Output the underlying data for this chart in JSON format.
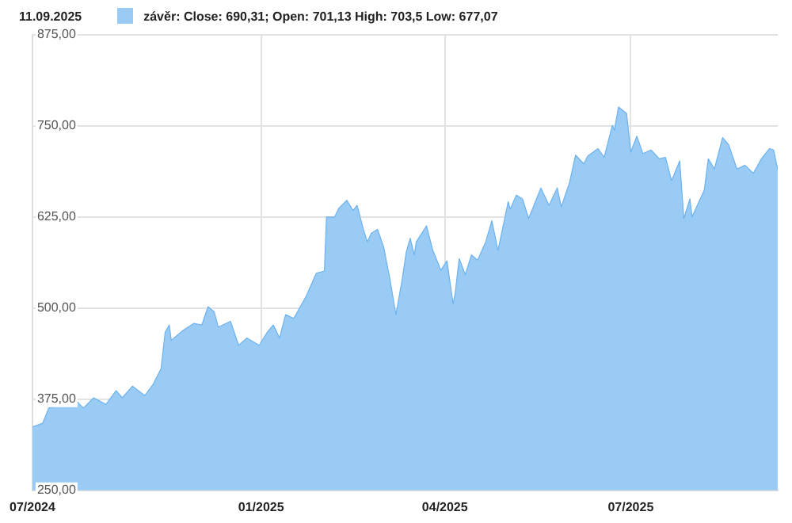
{
  "chart_data": {
    "type": "area",
    "title": "11.09.2025",
    "legend": "top left",
    "grid": true,
    "x": [
      "2024-09-11",
      "2024-09-16",
      "2024-09-19",
      "2024-09-22",
      "2024-10-02",
      "2024-10-06",
      "2024-10-11",
      "2024-10-17",
      "2024-10-22",
      "2024-10-25",
      "2024-10-30",
      "2024-11-05",
      "2024-11-09",
      "2024-11-13",
      "2024-11-15",
      "2024-11-17",
      "2024-11-18",
      "2024-11-24",
      "2024-11-29",
      "2024-12-03",
      "2024-12-06",
      "2024-12-09",
      "2024-12-11",
      "2024-12-17",
      "2024-12-21",
      "2024-12-25",
      "2024-12-31",
      "2025-01-04",
      "2025-01-07",
      "2025-01-10",
      "2025-01-13",
      "2025-01-17",
      "2025-01-23",
      "2025-01-28",
      "2025-02-01",
      "2025-02-02",
      "2025-02-06",
      "2025-02-08",
      "2025-02-12",
      "2025-02-15",
      "2025-02-17",
      "2025-02-20",
      "2025-02-22",
      "2025-02-24",
      "2025-02-27",
      "2025-03-02",
      "2025-03-05",
      "2025-03-08",
      "2025-03-11",
      "2025-03-13",
      "2025-03-15",
      "2025-03-17",
      "2025-03-18",
      "2025-03-23",
      "2025-03-26",
      "2025-03-30",
      "2025-04-02",
      "2025-04-05",
      "2025-04-06",
      "2025-04-08",
      "2025-04-11",
      "2025-04-14",
      "2025-04-17",
      "2025-04-21",
      "2025-04-24",
      "2025-04-27",
      "2025-05-02",
      "2025-05-03",
      "2025-05-06",
      "2025-05-09",
      "2025-05-12",
      "2025-05-18",
      "2025-05-22",
      "2025-05-26",
      "2025-05-28",
      "2025-06-01",
      "2025-06-04",
      "2025-06-08",
      "2025-06-10",
      "2025-06-15",
      "2025-06-18",
      "2025-06-22",
      "2025-06-23",
      "2025-06-25",
      "2025-06-29",
      "2025-07-01",
      "2025-07-04",
      "2025-07-07",
      "2025-07-11",
      "2025-07-15",
      "2025-07-18",
      "2025-07-21",
      "2025-07-25",
      "2025-07-27",
      "2025-07-30",
      "2025-07-31",
      "2025-08-06",
      "2025-08-08",
      "2025-08-11",
      "2025-08-15",
      "2025-08-18",
      "2025-08-22",
      "2025-08-26",
      "2025-08-30",
      "2025-09-03",
      "2025-09-07",
      "2025-09-09",
      "2025-09-11"
    ],
    "series": [
      {
        "name": "závěr: Close: 690,31; Open: 701,13 High: 703,5 Low: 677,07",
        "color": "#99cbf5",
        "values": [
          337,
          342,
          363,
          365,
          374,
          363,
          377,
          368,
          387,
          377,
          393,
          380,
          395,
          417,
          467,
          477,
          456,
          470,
          479,
          477,
          502,
          495,
          474,
          482,
          449,
          459,
          449,
          467,
          477,
          459,
          491,
          486,
          516,
          548,
          551,
          625,
          625,
          637,
          648,
          634,
          641,
          609,
          591,
          603,
          608,
          584,
          541,
          491,
          538,
          576,
          596,
          573,
          591,
          613,
          580,
          552,
          565,
          506,
          520,
          568,
          546,
          573,
          566,
          591,
          620,
          579,
          646,
          636,
          655,
          650,
          623,
          665,
          641,
          665,
          639,
          672,
          710,
          698,
          709,
          719,
          707,
          751,
          744,
          776,
          767,
          714,
          736,
          712,
          717,
          705,
          707,
          675,
          702,
          623,
          650,
          625,
          662,
          705,
          691,
          734,
          724,
          691,
          696,
          685,
          705,
          719,
          717,
          690
        ]
      }
    ],
    "xlim": [
      "2024-09-11",
      "2025-09-11"
    ],
    "xticks": [
      {
        "value": "2024-09-11",
        "label": "07/2024"
      },
      {
        "value": "2025-01-01",
        "label": "01/2025"
      },
      {
        "value": "2025-04-01",
        "label": "04/2025"
      },
      {
        "value": "2025-07-01",
        "label": "07/2025"
      }
    ],
    "ylim": [
      250,
      875
    ],
    "yticks": [
      {
        "value": 250,
        "label": "250,00"
      },
      {
        "value": 375,
        "label": "375,00"
      },
      {
        "value": 500,
        "label": "500,00"
      },
      {
        "value": 625,
        "label": "625,00"
      },
      {
        "value": 750,
        "label": "750,00"
      },
      {
        "value": 875,
        "label": "875,00"
      }
    ]
  }
}
